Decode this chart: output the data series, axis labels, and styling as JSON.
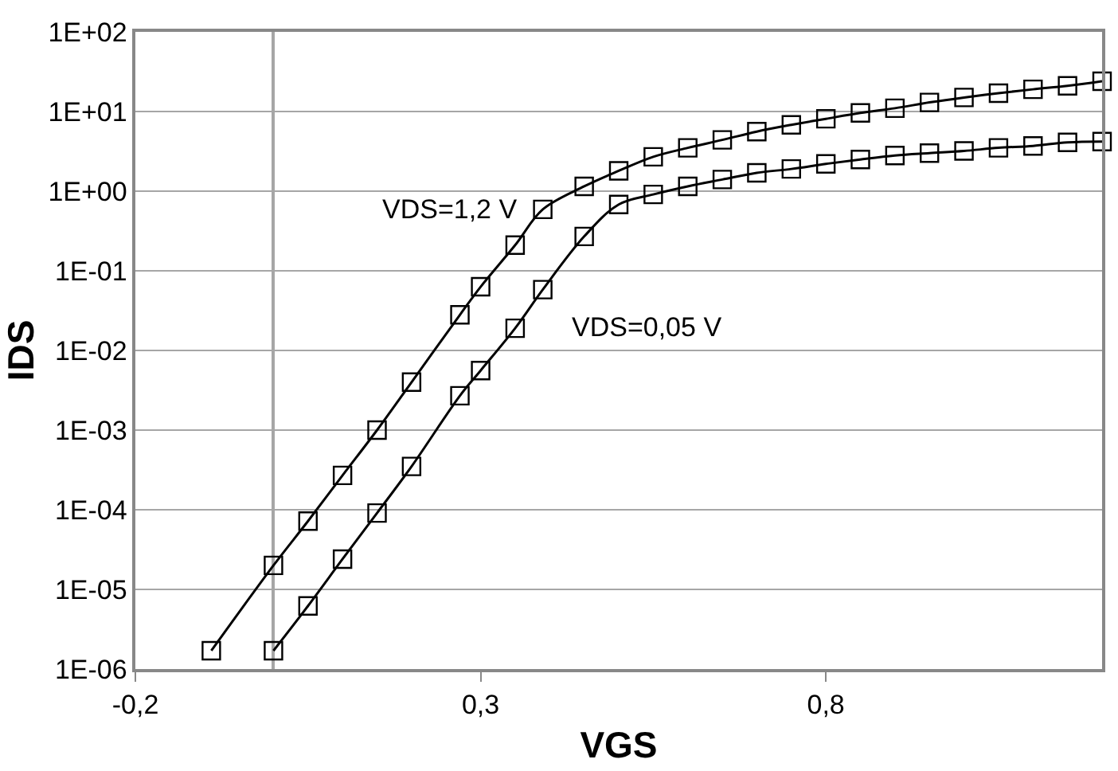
{
  "chart_data": {
    "type": "line",
    "xlabel": "VGS",
    "ylabel": "IDS",
    "xlim": [
      -0.2,
      1.2
    ],
    "xticks": [
      {
        "value": -0.2,
        "label": "-0,2"
      },
      {
        "value": 0.3,
        "label": "0,3"
      },
      {
        "value": 0.8,
        "label": "0,8"
      }
    ],
    "ylim": [
      1e-06,
      100
    ],
    "yticks": [
      {
        "value": 1e-06,
        "label": "1E-06"
      },
      {
        "value": 1e-05,
        "label": "1E-05"
      },
      {
        "value": 0.0001,
        "label": "1E-04"
      },
      {
        "value": 0.001,
        "label": "1E-03"
      },
      {
        "value": 0.01,
        "label": "1E-02"
      },
      {
        "value": 0.1,
        "label": "1E-01"
      },
      {
        "value": 1,
        "label": "1E+00"
      },
      {
        "value": 10,
        "label": "1E+01"
      },
      {
        "value": 100,
        "label": "1E+02"
      }
    ],
    "log": "y",
    "grid": "y",
    "marker": "square",
    "line_style": "solid",
    "legend": false,
    "series": [
      {
        "name": "VDS=1,2 V",
        "color": "#000000",
        "x": [
          -0.09,
          0,
          0.05,
          0.1,
          0.15,
          0.2,
          0.27,
          0.3,
          0.35,
          0.39,
          0.45,
          0.5,
          0.55,
          0.6,
          0.65,
          0.7,
          0.75,
          0.8,
          0.85,
          0.9,
          0.95,
          1.0,
          1.05,
          1.1,
          1.15,
          1.2
        ],
        "values": [
          1.7e-06,
          2e-05,
          7.2e-05,
          0.00027,
          0.001,
          0.004,
          0.028,
          0.063,
          0.21,
          0.59,
          1.15,
          1.8,
          2.7,
          3.5,
          4.4,
          5.6,
          6.8,
          8.1,
          9.6,
          11,
          13,
          15,
          17,
          19,
          21,
          24
        ]
      },
      {
        "name": "VDS=0,05 V",
        "color": "#000000",
        "x": [
          0,
          0.05,
          0.1,
          0.15,
          0.2,
          0.27,
          0.3,
          0.35,
          0.39,
          0.45,
          0.5,
          0.55,
          0.6,
          0.65,
          0.7,
          0.75,
          0.8,
          0.85,
          0.9,
          0.95,
          1.0,
          1.05,
          1.1,
          1.15,
          1.2
        ],
        "values": [
          1.7e-06,
          6.2e-06,
          2.4e-05,
          9.1e-05,
          0.00035,
          0.0027,
          0.0056,
          0.019,
          0.058,
          0.27,
          0.68,
          0.91,
          1.15,
          1.4,
          1.7,
          1.9,
          2.2,
          2.5,
          2.8,
          3.0,
          3.2,
          3.5,
          3.7,
          4.1,
          4.2
        ]
      }
    ]
  }
}
